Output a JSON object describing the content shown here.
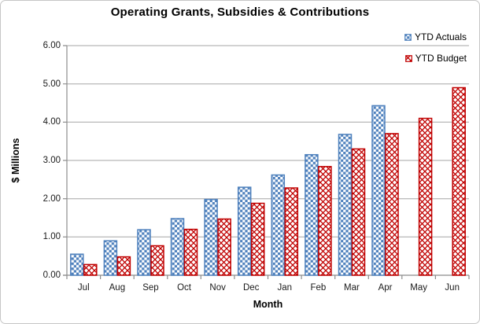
{
  "chart_data": {
    "type": "bar",
    "title": "Operating Grants, Subsidies & Contributions",
    "xlabel": "Month",
    "ylabel": "$ Millions",
    "categories": [
      "Jul",
      "Aug",
      "Sep",
      "Oct",
      "Nov",
      "Dec",
      "Jan",
      "Feb",
      "Mar",
      "Apr",
      "May",
      "Jun"
    ],
    "series": [
      {
        "name": "YTD Actuals",
        "pattern": "checkerboard",
        "color": "#4F81BD",
        "values": [
          0.55,
          0.9,
          1.19,
          1.48,
          1.98,
          2.3,
          2.62,
          3.15,
          3.68,
          4.43,
          null,
          null
        ]
      },
      {
        "name": "YTD Budget",
        "pattern": "weave",
        "color": "#C00000",
        "values": [
          0.28,
          0.48,
          0.77,
          1.2,
          1.47,
          1.88,
          2.28,
          2.84,
          3.3,
          3.7,
          4.1,
          4.9
        ]
      }
    ],
    "ylim": [
      0,
      6
    ],
    "ytick_step": 1,
    "y_tick_labels": [
      "0.00",
      "1.00",
      "2.00",
      "3.00",
      "4.00",
      "5.00",
      "6.00"
    ],
    "grid": true,
    "legend_position": "top-right",
    "colors": {
      "gridline": "#A6A6A6",
      "axis": "#8C8C8C",
      "text": "#000000",
      "actuals_blue": "#4F81BD",
      "budget_red": "#C00000"
    }
  }
}
